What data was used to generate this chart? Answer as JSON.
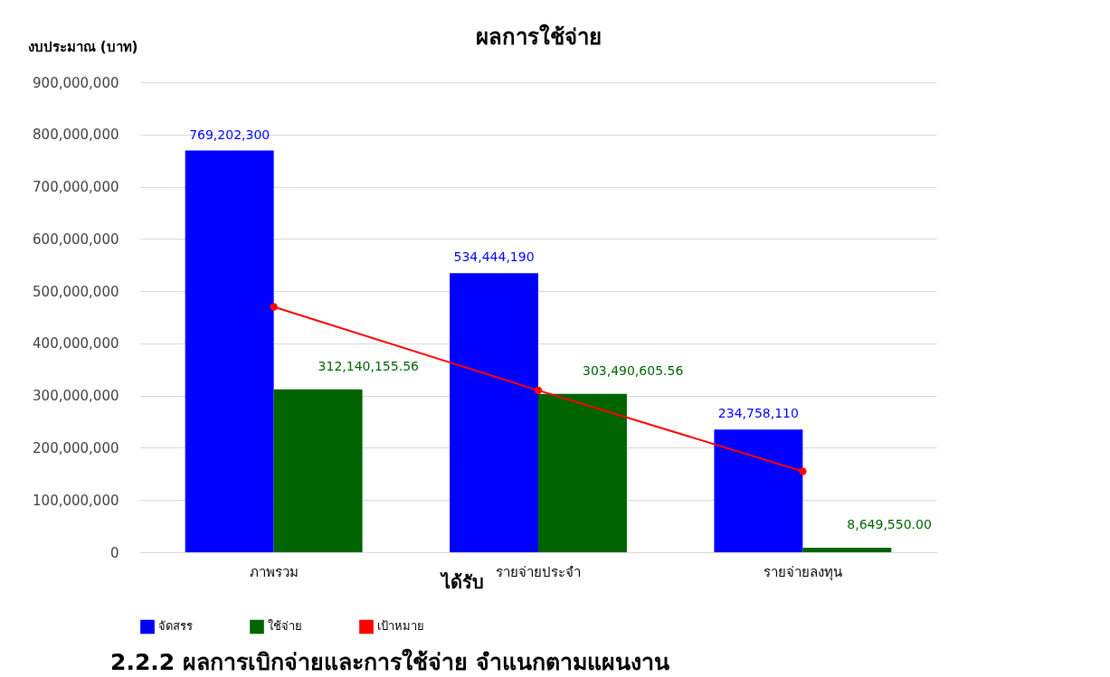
{
  "chart_data": {
    "type": "bar",
    "title": "ผลการใช้จ่าย",
    "ylabel": "งบประมาณ (บาท)",
    "categories": [
      "ภาพรวม",
      "รายจ่ายประจำ",
      "รายจ่ายลงทุน"
    ],
    "series": [
      {
        "name": "จัดสรร",
        "color": "#0000ff",
        "values": [
          769202300,
          534444190,
          234758110
        ],
        "value_labels": [
          "769,202,300",
          "534,444,190",
          "234,758,110"
        ]
      },
      {
        "name": "ใช้จ่าย",
        "color": "#006400",
        "values": [
          312140155.56,
          303490605.56,
          8649550
        ],
        "value_labels": [
          "312,140,155.56",
          "303,490,605.56",
          "8,649,550.00"
        ]
      },
      {
        "name": "เป้าหมาย",
        "type": "line",
        "color": "#ff0000",
        "marker": "circle",
        "values": [
          470000000,
          310000000,
          155000000
        ]
      }
    ],
    "ylim": [
      0,
      900000000
    ],
    "yticks": [
      0,
      {
        "value": 100000000,
        "label": "100,000,000"
      },
      {
        "value": 200000000,
        "label": "200,000,000"
      },
      {
        "value": 300000000,
        "label": "300,000,000"
      },
      {
        "value": 400000000,
        "label": "400,000,000"
      },
      {
        "value": 500000000,
        "label": "500,000,000"
      },
      {
        "value": 600000000,
        "label": "600,000,000"
      },
      {
        "value": 700000000,
        "label": "700,000,000"
      },
      {
        "value": 800000000,
        "label": "800,000,000"
      },
      {
        "value": 900000000,
        "label": "900,000,000"
      }
    ],
    "grid": "y",
    "legend": "bottom",
    "annotations": [
      "ได้รับ",
      "2.2.2 ผลการเบิกจ่ายและการใช้จ่าย จำแนกตามแผนงาน"
    ]
  }
}
